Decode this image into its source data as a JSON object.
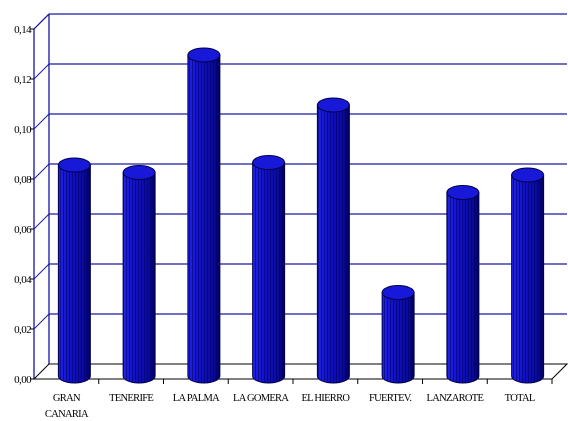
{
  "chart_data": {
    "type": "bar",
    "style": "3d-cylinder",
    "categories": [
      [
        "GRAN",
        "CANARIA"
      ],
      [
        "TENERIFE"
      ],
      [
        "LA PALMA"
      ],
      [
        "LA GOMERA"
      ],
      [
        "EL HIERRO"
      ],
      [
        "FUERTEV."
      ],
      [
        "LANZAROTE"
      ],
      [
        "TOTAL"
      ]
    ],
    "values": [
      0.084,
      0.081,
      0.128,
      0.085,
      0.108,
      0.033,
      0.073,
      0.08
    ],
    "yticks": [
      "0,00",
      "0,02",
      "0,04",
      "0,06",
      "0,08",
      "0,10",
      "0,12",
      "0,14"
    ],
    "ylim": [
      0,
      0.14
    ],
    "grid": true,
    "legend": "none",
    "colors": {
      "bar_front": "#1010c8",
      "bar_light": "#3a3af0",
      "bar_dark": "#00006a",
      "bar_top": "#1818d8",
      "gridline": "#1a1aa0",
      "frame": "#0000a0"
    }
  }
}
